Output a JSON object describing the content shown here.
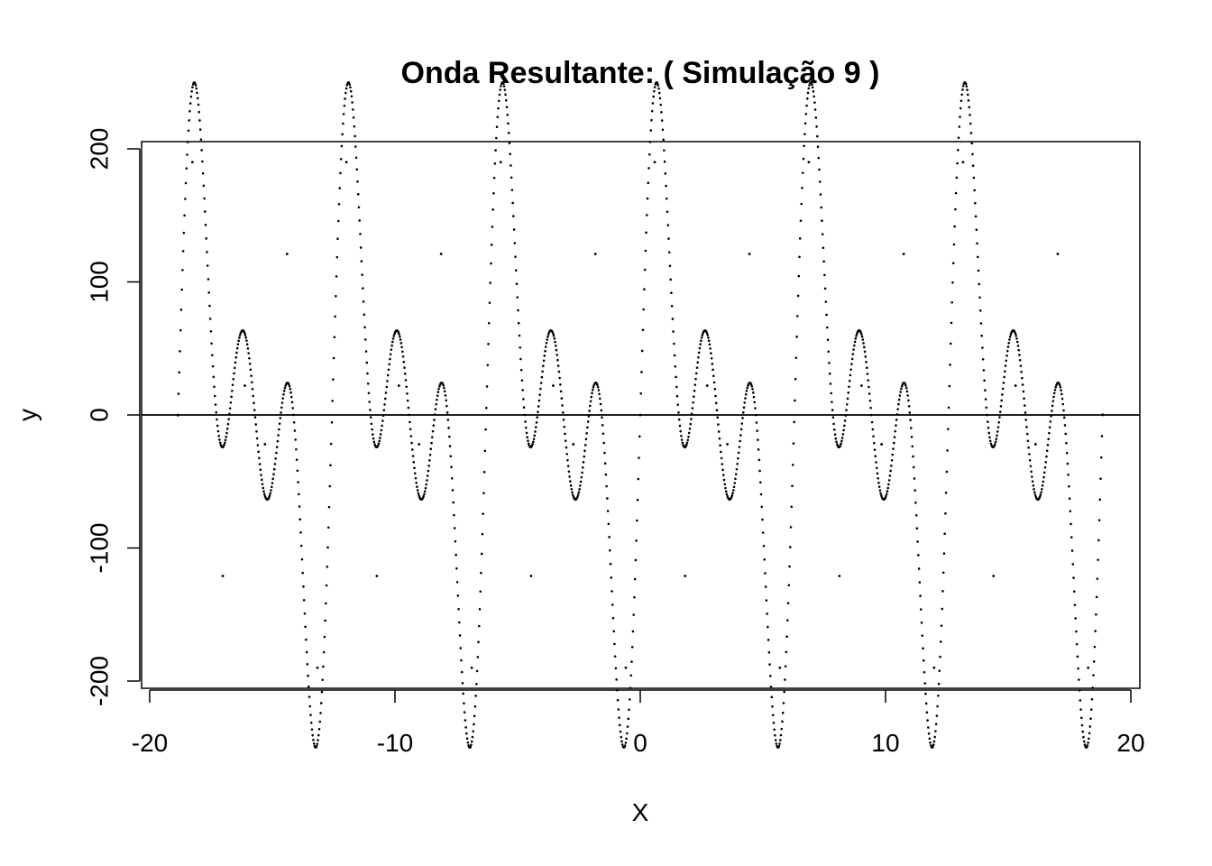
{
  "chart_data": {
    "type": "scatter",
    "title": "Onda Resultante: ( Simulação 9 )",
    "xlabel": "X",
    "ylabel": "y",
    "xlim": [
      -20,
      20
    ],
    "ylim": [
      -200,
      200
    ],
    "x_ticks": [
      -20,
      -10,
      0,
      10,
      20
    ],
    "y_ticks": [
      -200,
      -100,
      0,
      100,
      200
    ],
    "x_tick_labels": [
      "-20",
      "-10",
      "0",
      "10",
      "20"
    ],
    "y_tick_labels": [
      "-200",
      "-100",
      "0",
      "100",
      "200"
    ],
    "reference_line": {
      "orientation": "horizontal",
      "y": 0
    },
    "series": [
      {
        "x_range": [
          -18.85,
          18.85
        ],
        "formula": "y = 100*sin(x) + 100*sin(2x) + 100*sin(3x)",
        "color": "#000000",
        "samples": [
          {
            "x": -18.85,
            "y": 0
          },
          {
            "x": -18.26,
            "y": 190
          },
          {
            "x": -17.02,
            "y": -121
          },
          {
            "x": -16.12,
            "y": 22
          },
          {
            "x": -15.3,
            "y": -22
          },
          {
            "x": -14.4,
            "y": 121
          },
          {
            "x": -13.16,
            "y": -190
          },
          {
            "x": -11.98,
            "y": 190
          },
          {
            "x": -10.74,
            "y": -121
          },
          {
            "x": -9.84,
            "y": 22
          },
          {
            "x": -9.02,
            "y": -22
          },
          {
            "x": -8.12,
            "y": 121
          },
          {
            "x": -6.87,
            "y": -190
          },
          {
            "x": -5.69,
            "y": 190
          },
          {
            "x": -4.45,
            "y": -121
          },
          {
            "x": -3.55,
            "y": 22
          },
          {
            "x": -2.73,
            "y": -22
          },
          {
            "x": -1.83,
            "y": 121
          },
          {
            "x": -0.59,
            "y": -190
          },
          {
            "x": 0,
            "y": 0
          },
          {
            "x": 0.59,
            "y": 190
          },
          {
            "x": 1.83,
            "y": -121
          },
          {
            "x": 2.73,
            "y": 22
          },
          {
            "x": 3.55,
            "y": -22
          },
          {
            "x": 4.45,
            "y": 121
          },
          {
            "x": 5.69,
            "y": -190
          },
          {
            "x": 6.87,
            "y": 190
          },
          {
            "x": 8.12,
            "y": -121
          },
          {
            "x": 9.02,
            "y": 22
          },
          {
            "x": 9.84,
            "y": -22
          },
          {
            "x": 10.74,
            "y": 121
          },
          {
            "x": 11.98,
            "y": -190
          },
          {
            "x": 13.16,
            "y": 190
          },
          {
            "x": 14.4,
            "y": -121
          },
          {
            "x": 15.3,
            "y": 22
          },
          {
            "x": 16.12,
            "y": -22
          },
          {
            "x": 17.02,
            "y": 121
          },
          {
            "x": 18.26,
            "y": -190
          },
          {
            "x": 18.85,
            "y": 0
          }
        ]
      }
    ],
    "grid": false,
    "legend": "none"
  }
}
